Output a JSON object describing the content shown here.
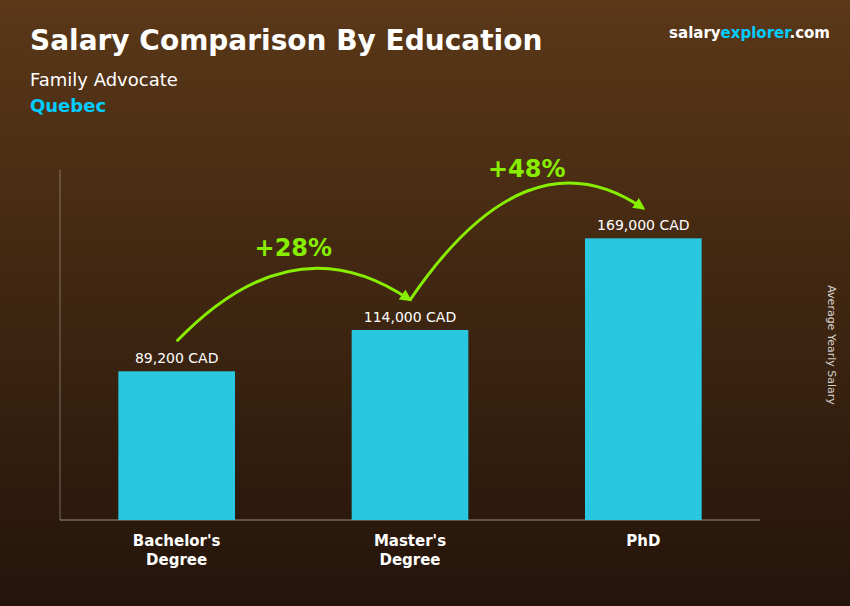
{
  "chart_data": {
    "type": "bar",
    "title": "Salary Comparison By Education",
    "subtitle": [
      "Family Advocate",
      "Quebec"
    ],
    "brand": [
      "salary",
      "explorer",
      ".com"
    ],
    "ylabel": "Average Yearly Salary",
    "categories": [
      "Bachelor's\nDegree",
      "Master's\nDegree",
      "PhD"
    ],
    "values": [
      89200,
      114000,
      169000
    ],
    "value_labels": [
      "89,200 CAD",
      "114,000 CAD",
      "169,000 CAD"
    ],
    "data_labels": true,
    "color": "#29c8e0",
    "ylim": [
      0,
      210000
    ],
    "tick_labels": "x",
    "annotations": [
      {
        "text": "+28%",
        "color": "#88ee00"
      },
      {
        "text": "+48%",
        "color": "#88ee00"
      }
    ]
  }
}
